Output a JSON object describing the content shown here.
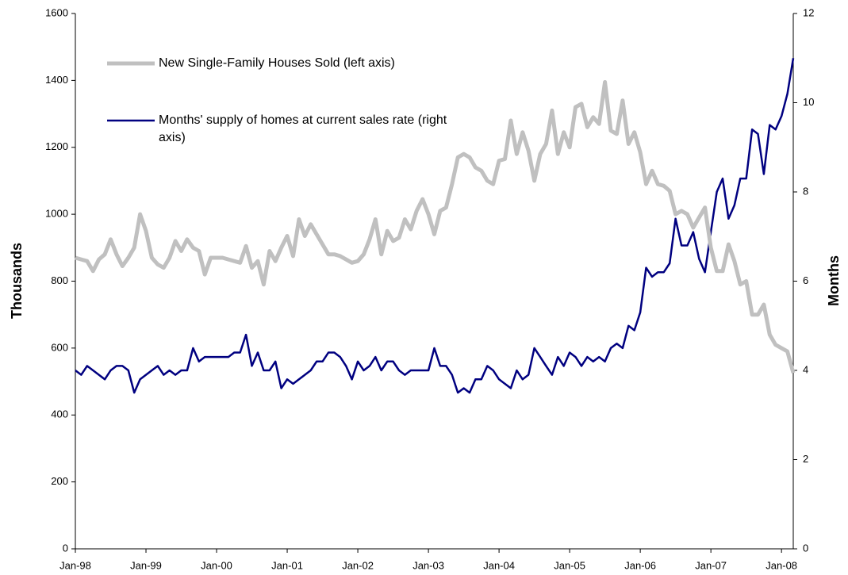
{
  "chart_data": {
    "type": "line",
    "categories": [
      "Jan-98",
      null,
      null,
      null,
      null,
      null,
      null,
      null,
      null,
      null,
      null,
      null,
      "Jan-99",
      null,
      null,
      null,
      null,
      null,
      null,
      null,
      null,
      null,
      null,
      null,
      "Jan-00",
      null,
      null,
      null,
      null,
      null,
      null,
      null,
      null,
      null,
      null,
      null,
      "Jan-01",
      null,
      null,
      null,
      null,
      null,
      null,
      null,
      null,
      null,
      null,
      null,
      "Jan-02",
      null,
      null,
      null,
      null,
      null,
      null,
      null,
      null,
      null,
      null,
      null,
      "Jan-03",
      null,
      null,
      null,
      null,
      null,
      null,
      null,
      null,
      null,
      null,
      null,
      "Jan-04",
      null,
      null,
      null,
      null,
      null,
      null,
      null,
      null,
      null,
      null,
      null,
      "Jan-05",
      null,
      null,
      null,
      null,
      null,
      null,
      null,
      null,
      null,
      null,
      null,
      "Jan-06",
      null,
      null,
      null,
      null,
      null,
      null,
      null,
      null,
      null,
      null,
      null,
      "Jan-07",
      null,
      null,
      null,
      null,
      null,
      null,
      null,
      null,
      null,
      null,
      null,
      "Jan-08",
      null,
      null
    ],
    "series": [
      {
        "name": "New Single-Family Houses Sold (left axis)",
        "color": "#c0c0c0",
        "axis": "y",
        "values": [
          870,
          865,
          860,
          830,
          865,
          880,
          925,
          880,
          845,
          870,
          900,
          1000,
          950,
          870,
          850,
          840,
          870,
          920,
          890,
          925,
          900,
          890,
          820,
          870,
          870,
          870,
          865,
          860,
          855,
          905,
          840,
          860,
          790,
          890,
          860,
          900,
          935,
          875,
          985,
          935,
          970,
          940,
          910,
          880,
          880,
          875,
          865,
          855,
          860,
          880,
          925,
          985,
          880,
          950,
          920,
          930,
          985,
          955,
          1010,
          1045,
          1000,
          940,
          1010,
          1020,
          1090,
          1170,
          1180,
          1170,
          1140,
          1130,
          1100,
          1090,
          1160,
          1165,
          1280,
          1180,
          1245,
          1190,
          1100,
          1180,
          1210,
          1310,
          1180,
          1245,
          1200,
          1320,
          1330,
          1260,
          1290,
          1270,
          1395,
          1250,
          1240,
          1340,
          1210,
          1245,
          1185,
          1090,
          1130,
          1090,
          1085,
          1070,
          1000,
          1010,
          1000,
          960,
          990,
          1020,
          900,
          830,
          830,
          910,
          860,
          790,
          800,
          700,
          700,
          730,
          640,
          610,
          600,
          590,
          526
        ]
      },
      {
        "name": "Months' supply of homes at current sales rate (right axis)",
        "color": "#000080",
        "axis": "y2",
        "values": [
          4.0,
          3.9,
          4.1,
          4.0,
          3.9,
          3.8,
          4.0,
          4.1,
          4.1,
          4.0,
          3.5,
          3.8,
          3.9,
          4.0,
          4.1,
          3.9,
          4.0,
          3.9,
          4.0,
          4.0,
          4.5,
          4.2,
          4.3,
          4.3,
          4.3,
          4.3,
          4.3,
          4.4,
          4.4,
          4.8,
          4.1,
          4.4,
          4.0,
          4.0,
          4.2,
          3.6,
          3.8,
          3.7,
          3.8,
          3.9,
          4.0,
          4.2,
          4.2,
          4.4,
          4.4,
          4.3,
          4.1,
          3.8,
          4.2,
          4.0,
          4.1,
          4.3,
          4.0,
          4.2,
          4.2,
          4.0,
          3.9,
          4.0,
          4.0,
          4.0,
          4.0,
          4.5,
          4.1,
          4.1,
          3.9,
          3.5,
          3.6,
          3.5,
          3.8,
          3.8,
          4.1,
          4.0,
          3.8,
          3.7,
          3.6,
          4.0,
          3.8,
          3.9,
          4.5,
          4.3,
          4.1,
          3.9,
          4.3,
          4.1,
          4.4,
          4.3,
          4.1,
          4.3,
          4.2,
          4.3,
          4.2,
          4.5,
          4.6,
          4.5,
          5.0,
          4.9,
          5.3,
          6.3,
          6.1,
          6.2,
          6.2,
          6.4,
          7.4,
          6.8,
          6.8,
          7.1,
          6.5,
          6.2,
          7.1,
          8.0,
          8.3,
          7.4,
          7.7,
          8.3,
          8.3,
          9.4,
          9.3,
          8.4,
          9.5,
          9.4,
          9.7,
          10.2,
          11.0
        ]
      }
    ],
    "y_label": "Thousands",
    "y2_label": "Months",
    "ylim": [
      0,
      1600
    ],
    "yticks": [
      0,
      200,
      400,
      600,
      800,
      1000,
      1200,
      1400,
      1600
    ],
    "y2lim": [
      0,
      12
    ],
    "y2ticks": [
      0,
      2,
      4,
      6,
      8,
      10,
      12
    ],
    "grid": false
  }
}
